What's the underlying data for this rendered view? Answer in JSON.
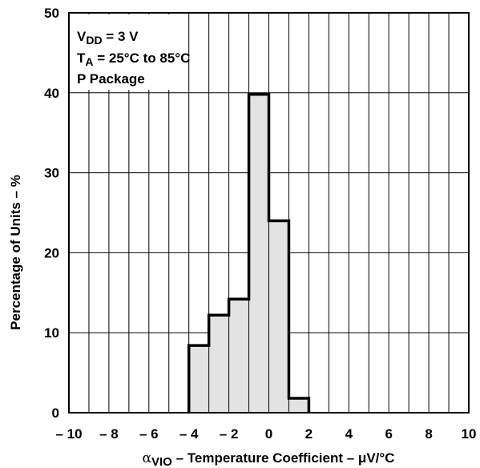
{
  "chart_data": {
    "type": "bar",
    "title": "",
    "xlabel": {
      "symbol": "α",
      "subscript": "VIO",
      "text": " – Temperature Coefficient – μV/°C"
    },
    "ylabel": "Percentage of Units – %",
    "xlim": [
      -10,
      10
    ],
    "ylim": [
      0,
      50
    ],
    "x_ticks": [
      "– 10",
      "– 8",
      "– 6",
      "– 4",
      "– 2",
      "0",
      "2",
      "4",
      "6",
      "8",
      "10"
    ],
    "y_ticks": [
      "0",
      "10",
      "20",
      "30",
      "40",
      "50"
    ],
    "grid": true,
    "bins": [
      {
        "from": -4,
        "to": -3,
        "value": 8.4
      },
      {
        "from": -3,
        "to": -2,
        "value": 12.2
      },
      {
        "from": -2,
        "to": -1,
        "value": 14.2
      },
      {
        "from": -1,
        "to": 0,
        "value": 39.8
      },
      {
        "from": 0,
        "to": 1,
        "value": 24.0
      },
      {
        "from": 1,
        "to": 2,
        "value": 1.8
      }
    ],
    "fill_color": "#e3e3e3",
    "line_color": "#000000",
    "annotations": [
      {
        "main": "V",
        "sub": "DD",
        "rest": " = 3 V"
      },
      {
        "main": "T",
        "sub": "A",
        "rest": " = 25°C to 85°C"
      },
      {
        "main": "P Package",
        "sub": "",
        "rest": ""
      }
    ]
  }
}
